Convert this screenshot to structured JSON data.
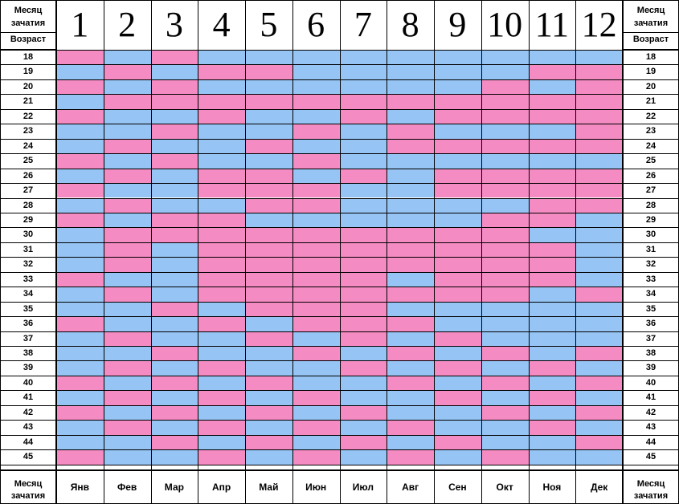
{
  "chart_data": {
    "type": "heatmap",
    "header_left": {
      "line1": "Месяц",
      "line2": "зачатия",
      "line3": "Возраст"
    },
    "header_right": {
      "line1": "Месяц",
      "line2": "зачатия",
      "line3": "Возраст"
    },
    "footer_left": {
      "line1": "Месяц",
      "line2": "зачатия"
    },
    "footer_right": {
      "line1": "Месяц",
      "line2": "зачатия"
    },
    "month_numbers": [
      "1",
      "2",
      "3",
      "4",
      "5",
      "6",
      "7",
      "8",
      "9",
      "10",
      "11",
      "12"
    ],
    "month_names": [
      "Янв",
      "Фев",
      "Мар",
      "Апр",
      "Май",
      "Июн",
      "Июл",
      "Авг",
      "Сен",
      "Окт",
      "Ноя",
      "Дек"
    ],
    "ages": [
      "18",
      "19",
      "20",
      "21",
      "22",
      "23",
      "24",
      "25",
      "26",
      "27",
      "28",
      "29",
      "30",
      "31",
      "32",
      "33",
      "34",
      "35",
      "36",
      "37",
      "38",
      "39",
      "40",
      "41",
      "42",
      "43",
      "44",
      "45"
    ],
    "colors": {
      "G": "#f48cc3",
      "B": "#96c5f5"
    },
    "cells": [
      [
        "G",
        "B",
        "G",
        "B",
        "B",
        "B",
        "B",
        "B",
        "B",
        "B",
        "B",
        "B"
      ],
      [
        "B",
        "G",
        "B",
        "G",
        "G",
        "B",
        "B",
        "B",
        "B",
        "B",
        "G",
        "G"
      ],
      [
        "G",
        "B",
        "G",
        "B",
        "B",
        "B",
        "B",
        "B",
        "B",
        "G",
        "B",
        "G"
      ],
      [
        "B",
        "G",
        "G",
        "G",
        "G",
        "G",
        "G",
        "G",
        "G",
        "G",
        "G",
        "G"
      ],
      [
        "G",
        "B",
        "B",
        "G",
        "B",
        "B",
        "G",
        "B",
        "G",
        "G",
        "G",
        "G"
      ],
      [
        "B",
        "B",
        "G",
        "B",
        "B",
        "G",
        "B",
        "G",
        "B",
        "B",
        "B",
        "G"
      ],
      [
        "B",
        "G",
        "B",
        "B",
        "G",
        "B",
        "B",
        "G",
        "G",
        "G",
        "G",
        "G"
      ],
      [
        "G",
        "B",
        "G",
        "B",
        "B",
        "G",
        "B",
        "B",
        "B",
        "B",
        "B",
        "B"
      ],
      [
        "B",
        "G",
        "B",
        "G",
        "G",
        "B",
        "G",
        "B",
        "G",
        "G",
        "G",
        "G"
      ],
      [
        "G",
        "B",
        "B",
        "G",
        "G",
        "G",
        "B",
        "B",
        "G",
        "G",
        "G",
        "G"
      ],
      [
        "B",
        "G",
        "B",
        "B",
        "G",
        "G",
        "B",
        "B",
        "B",
        "B",
        "G",
        "G"
      ],
      [
        "G",
        "B",
        "G",
        "G",
        "B",
        "B",
        "B",
        "B",
        "B",
        "G",
        "G",
        "B"
      ],
      [
        "B",
        "G",
        "G",
        "G",
        "G",
        "G",
        "G",
        "G",
        "G",
        "G",
        "B",
        "B"
      ],
      [
        "B",
        "G",
        "B",
        "G",
        "G",
        "G",
        "G",
        "G",
        "G",
        "G",
        "G",
        "B"
      ],
      [
        "B",
        "G",
        "B",
        "G",
        "G",
        "G",
        "G",
        "G",
        "G",
        "G",
        "G",
        "B"
      ],
      [
        "G",
        "B",
        "B",
        "G",
        "G",
        "G",
        "G",
        "B",
        "G",
        "G",
        "G",
        "B"
      ],
      [
        "B",
        "G",
        "B",
        "G",
        "G",
        "G",
        "G",
        "G",
        "G",
        "G",
        "B",
        "G"
      ],
      [
        "B",
        "B",
        "G",
        "B",
        "G",
        "G",
        "G",
        "B",
        "B",
        "B",
        "B",
        "B"
      ],
      [
        "G",
        "B",
        "B",
        "G",
        "B",
        "G",
        "G",
        "G",
        "B",
        "B",
        "B",
        "B"
      ],
      [
        "B",
        "G",
        "B",
        "B",
        "G",
        "B",
        "G",
        "B",
        "G",
        "B",
        "B",
        "B"
      ],
      [
        "B",
        "B",
        "G",
        "B",
        "B",
        "G",
        "B",
        "G",
        "B",
        "G",
        "B",
        "G"
      ],
      [
        "B",
        "G",
        "B",
        "G",
        "B",
        "B",
        "G",
        "B",
        "G",
        "B",
        "G",
        "B"
      ],
      [
        "G",
        "B",
        "G",
        "B",
        "G",
        "B",
        "B",
        "G",
        "B",
        "G",
        "B",
        "G"
      ],
      [
        "B",
        "G",
        "B",
        "G",
        "B",
        "G",
        "B",
        "B",
        "G",
        "B",
        "G",
        "B"
      ],
      [
        "G",
        "B",
        "G",
        "B",
        "G",
        "B",
        "G",
        "B",
        "B",
        "G",
        "B",
        "G"
      ],
      [
        "B",
        "G",
        "B",
        "G",
        "B",
        "G",
        "B",
        "G",
        "B",
        "B",
        "G",
        "B"
      ],
      [
        "B",
        "B",
        "G",
        "B",
        "G",
        "B",
        "G",
        "B",
        "G",
        "B",
        "B",
        "G"
      ],
      [
        "G",
        "B",
        "B",
        "G",
        "B",
        "G",
        "B",
        "G",
        "B",
        "G",
        "B",
        "B"
      ]
    ]
  }
}
